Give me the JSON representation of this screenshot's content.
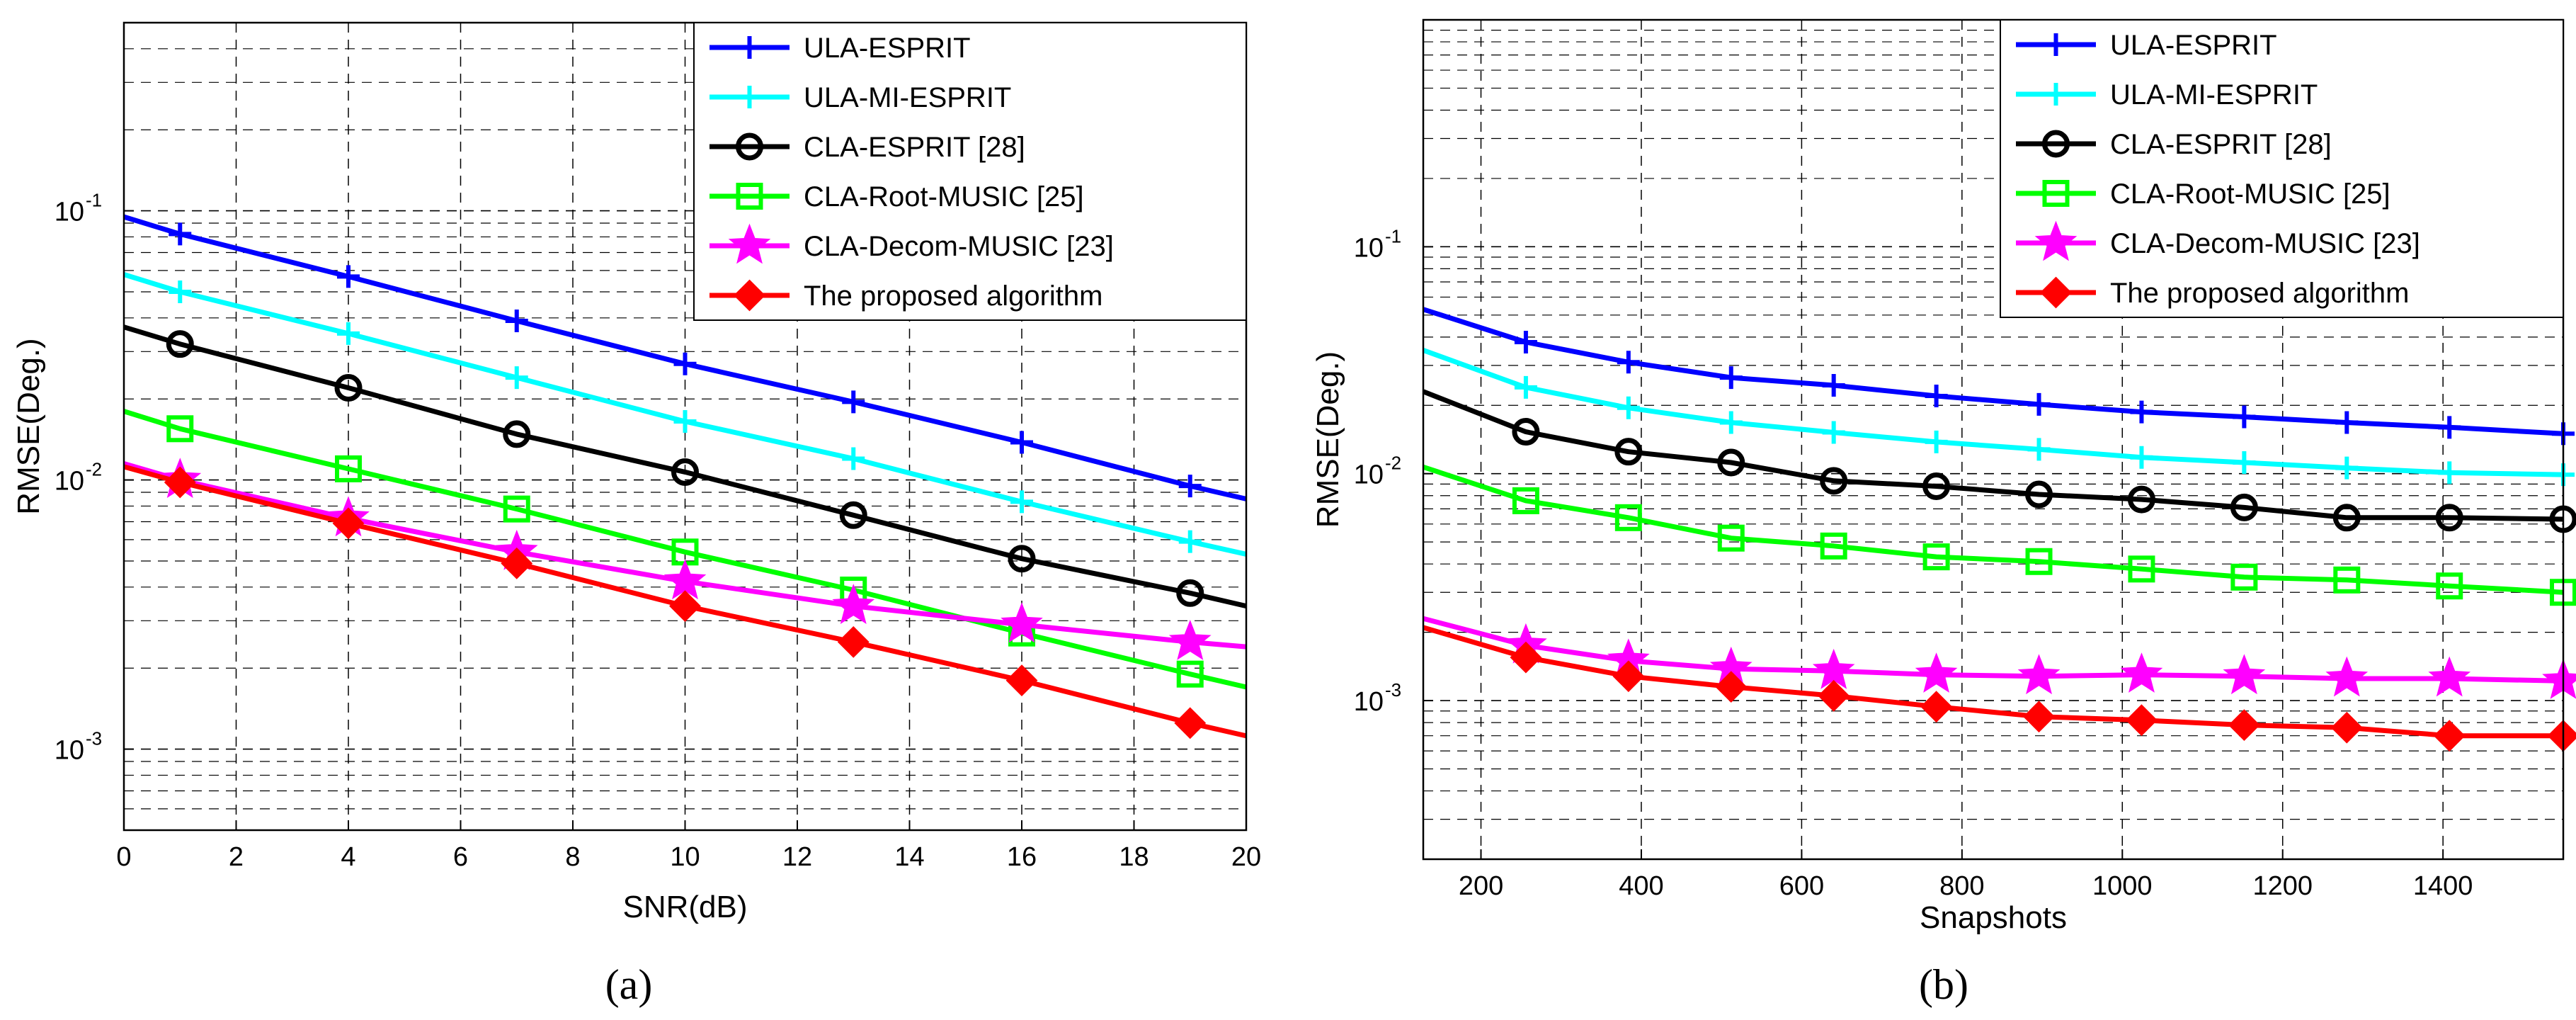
{
  "figure": {
    "captions": [
      "(a)",
      "(b)"
    ]
  },
  "chart_data": [
    {
      "type": "line",
      "id": "a",
      "caption": "(a)",
      "xlabel": "SNR(dB)",
      "ylabel": "RMSE(Deg.)",
      "xscale": "linear",
      "yscale": "log",
      "xlim": [
        0,
        20
      ],
      "ylim": [
        0.0005,
        0.5
      ],
      "xticks": [
        0,
        2,
        4,
        6,
        8,
        10,
        12,
        14,
        16,
        18,
        20
      ],
      "xtick_labels": [
        "0",
        "2",
        "4",
        "6",
        "8",
        "10",
        "12",
        "14",
        "16",
        "18",
        "20"
      ],
      "yticks": [
        0.001,
        0.01,
        0.1
      ],
      "ytick_labels": [
        [
          "10",
          "-3"
        ],
        [
          "10",
          "-2"
        ],
        [
          "10",
          "-1"
        ]
      ],
      "grid": true,
      "legend_position": "top-right",
      "x": [
        0,
        1,
        4,
        7,
        10,
        13,
        16,
        19,
        20
      ],
      "series": [
        {
          "name": "ULA-ESPRIT",
          "color": "#0000ff",
          "marker": "plus",
          "marker_idx": [
            1,
            2,
            3,
            4,
            5,
            6,
            7
          ],
          "values": [
            0.095,
            0.082,
            0.057,
            0.039,
            0.027,
            0.0195,
            0.0138,
            0.0095,
            0.0085
          ]
        },
        {
          "name": "ULA-MI-ESPRIT",
          "color": "#00ffff",
          "marker": "plus",
          "marker_idx": [
            1,
            2,
            3,
            4,
            5,
            6,
            7
          ],
          "values": [
            0.058,
            0.05,
            0.035,
            0.024,
            0.0165,
            0.012,
            0.0083,
            0.0059,
            0.0053
          ]
        },
        {
          "name": "CLA-ESPRIT [28]",
          "color": "#000000",
          "marker": "circle",
          "marker_idx": [
            1,
            2,
            3,
            4,
            5,
            6,
            7
          ],
          "values": [
            0.037,
            0.032,
            0.022,
            0.0148,
            0.0107,
            0.0074,
            0.0051,
            0.0038,
            0.0034
          ]
        },
        {
          "name": "CLA-Root-MUSIC [25]",
          "color": "#00ff00",
          "marker": "square",
          "marker_idx": [
            1,
            2,
            3,
            4,
            5,
            6,
            7
          ],
          "values": [
            0.018,
            0.0155,
            0.011,
            0.0078,
            0.0054,
            0.0039,
            0.0027,
            0.0019,
            0.0017
          ]
        },
        {
          "name": "CLA-Decom-MUSIC [23]",
          "color": "#ff00ff",
          "marker": "star",
          "marker_idx": [
            1,
            2,
            3,
            4,
            5,
            6,
            7
          ],
          "values": [
            0.0115,
            0.01,
            0.0072,
            0.0054,
            0.0042,
            0.0034,
            0.0029,
            0.0025,
            0.0024
          ]
        },
        {
          "name": "The proposed algorithm",
          "color": "#ff0000",
          "marker": "diamond",
          "marker_idx": [
            1,
            2,
            3,
            4,
            5,
            6,
            7
          ],
          "values": [
            0.0112,
            0.0098,
            0.0069,
            0.0049,
            0.0034,
            0.0025,
            0.0018,
            0.00125,
            0.00112
          ]
        }
      ]
    },
    {
      "type": "line",
      "id": "b",
      "caption": "(b)",
      "xlabel": "Snapshots",
      "ylabel": "RMSE(Deg.)",
      "xscale": "linear",
      "yscale": "log",
      "xlim": [
        128,
        1550
      ],
      "ylim": [
        0.0002,
        1.0
      ],
      "xticks": [
        200,
        400,
        600,
        800,
        1000,
        1200,
        1400
      ],
      "xtick_labels": [
        "200",
        "400",
        "600",
        "800",
        "1000",
        "1200",
        "1400"
      ],
      "yticks": [
        0.001,
        0.01,
        0.1
      ],
      "ytick_labels": [
        [
          "10",
          "-3"
        ],
        [
          "10",
          "-2"
        ],
        [
          "10",
          "-1"
        ]
      ],
      "grid": true,
      "legend_position": "top-right",
      "x": [
        128,
        256,
        384,
        512,
        640,
        768,
        896,
        1024,
        1152,
        1280,
        1408,
        1550
      ],
      "series": [
        {
          "name": "ULA-ESPRIT",
          "color": "#0000ff",
          "marker": "plus",
          "marker_idx": [
            1,
            2,
            3,
            4,
            5,
            6,
            7,
            8,
            9,
            10,
            11
          ],
          "values": [
            0.053,
            0.038,
            0.031,
            0.0265,
            0.0245,
            0.022,
            0.0202,
            0.0187,
            0.0178,
            0.0168,
            0.016,
            0.015
          ]
        },
        {
          "name": "ULA-MI-ESPRIT",
          "color": "#00ffff",
          "marker": "plus",
          "marker_idx": [
            1,
            2,
            3,
            4,
            5,
            6,
            7,
            8,
            9,
            10,
            11
          ],
          "values": [
            0.035,
            0.024,
            0.0195,
            0.0168,
            0.0152,
            0.0138,
            0.0128,
            0.0118,
            0.0112,
            0.0106,
            0.0101,
            0.0099
          ]
        },
        {
          "name": "CLA-ESPRIT [28]",
          "color": "#000000",
          "marker": "circle",
          "marker_idx": [
            1,
            2,
            3,
            4,
            5,
            6,
            7,
            8,
            9,
            10,
            11
          ],
          "values": [
            0.023,
            0.0153,
            0.0125,
            0.0112,
            0.0093,
            0.0088,
            0.0081,
            0.0077,
            0.0071,
            0.0064,
            0.0064,
            0.0063
          ]
        },
        {
          "name": "CLA-Root-MUSIC [25]",
          "color": "#00ff00",
          "marker": "square",
          "marker_idx": [
            1,
            2,
            3,
            4,
            5,
            6,
            7,
            8,
            9,
            10,
            11
          ],
          "values": [
            0.0107,
            0.0076,
            0.0064,
            0.0052,
            0.0048,
            0.0043,
            0.0041,
            0.0038,
            0.0035,
            0.0034,
            0.0032,
            0.003
          ]
        },
        {
          "name": "CLA-Decom-MUSIC [23]",
          "color": "#ff00ff",
          "marker": "star",
          "marker_idx": [
            1,
            2,
            3,
            4,
            5,
            6,
            7,
            8,
            9,
            10,
            11
          ],
          "values": [
            0.0023,
            0.00175,
            0.0015,
            0.00138,
            0.00135,
            0.0013,
            0.00128,
            0.0013,
            0.00128,
            0.00125,
            0.00125,
            0.00122
          ]
        },
        {
          "name": "The proposed algorithm",
          "color": "#ff0000",
          "marker": "diamond",
          "marker_idx": [
            1,
            2,
            3,
            4,
            5,
            6,
            7,
            8,
            9,
            10,
            11
          ],
          "values": [
            0.0021,
            0.00155,
            0.00128,
            0.00115,
            0.00105,
            0.00094,
            0.00085,
            0.00082,
            0.00078,
            0.00076,
            0.0007,
            0.0007
          ]
        }
      ]
    }
  ]
}
